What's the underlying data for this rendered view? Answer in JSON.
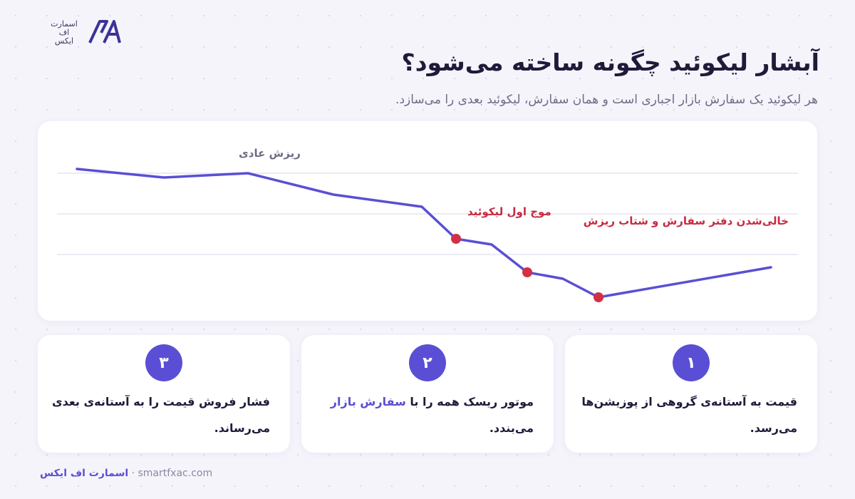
{
  "header": {
    "logo": [
      "اسمارت",
      "اف",
      "ایکس"
    ],
    "title": "آبشار لیکوئید چگونه ساخته می‌شود؟",
    "subtitle": "هر لیکوئید یک سفارش بازار اجباری است و همان سفارش، لیکوئید بعدی را می‌سازد."
  },
  "chart": {
    "annotations": [
      "ریزش عادی",
      "موج اول لیکوئید",
      "خالی‌شدن دفتر سفارش و شتاب ریزش"
    ]
  },
  "cards": [
    {
      "number": "۱",
      "lines": [
        [
          "قیمت به آستانه‌ی گروهی از پوزیشن‌ها"
        ],
        [
          "می‌رسد."
        ]
      ]
    },
    {
      "number": "۲",
      "lines": [
        [
          "موتور ریسک همه را با ",
          "سفارش بازار"
        ],
        [
          "می‌بندد."
        ]
      ]
    },
    {
      "number": "۳",
      "lines": [
        [
          "فشار فروش قیمت را به آستانه‌ی بعدی"
        ],
        [
          "می‌رساند."
        ]
      ]
    }
  ],
  "footer": {
    "brand": "اسمارت اف ایکس",
    "separator": "·",
    "url": "smartfxac.com"
  }
}
